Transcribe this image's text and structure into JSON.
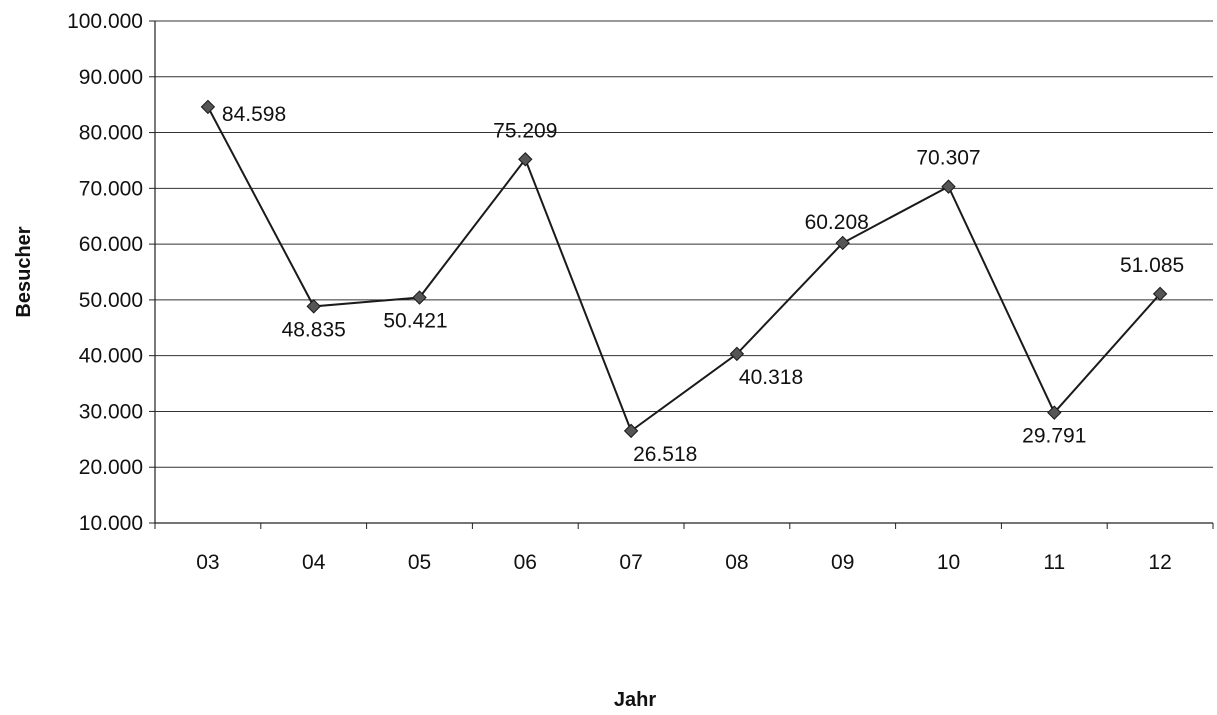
{
  "chart_data": {
    "type": "line",
    "title": "",
    "xlabel": "Jahr",
    "ylabel": "Besucher",
    "ylim": [
      10000,
      100000
    ],
    "ytick_values": [
      10000,
      20000,
      30000,
      40000,
      50000,
      60000,
      70000,
      80000,
      90000,
      100000
    ],
    "ytick_labels": [
      "10.000",
      "20.000",
      "30.000",
      "40.000",
      "50.000",
      "60.000",
      "70.000",
      "80.000",
      "90.000",
      "100.000"
    ],
    "categories": [
      "03",
      "04",
      "05",
      "06",
      "07",
      "08",
      "09",
      "10",
      "11",
      "12"
    ],
    "series": [
      {
        "values": [
          84598,
          48835,
          50421,
          75209,
          26518,
          40318,
          60208,
          70307,
          29791,
          51085
        ],
        "labels": [
          "84.598",
          "48.835",
          "50.421",
          "75.209",
          "26.518",
          "40.318",
          "60.208",
          "70.307",
          "29.791",
          "51.085"
        ],
        "marker": "diamond",
        "color": "#1a1a1a"
      }
    ],
    "grid": true,
    "legend": "none",
    "colors": {
      "line": "#1a1a1a",
      "marker": "#555555",
      "grid": "#333333",
      "axis": "#222222"
    }
  }
}
